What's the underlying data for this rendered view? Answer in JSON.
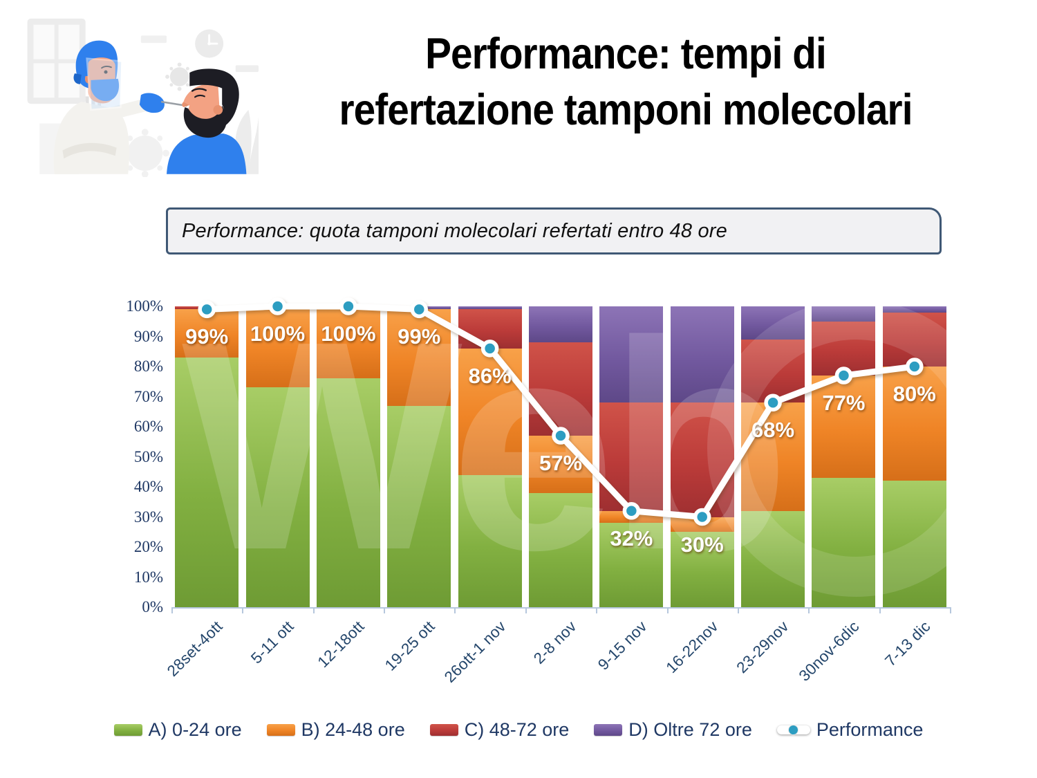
{
  "title": {
    "line1": "Performance: tempi di",
    "line2": "refertazione tamponi molecolari"
  },
  "subtitle": "Performance: quota tamponi molecolari refertati entro 48 ore",
  "watermark": "Web",
  "colors": {
    "axis_text": "#1f3864",
    "axis_line": "#b6c7dd",
    "marker_fill": "#2d9dc1",
    "line_stroke": "#ffffff",
    "title_text": "#000000"
  },
  "chart_data": {
    "type": "bar",
    "stacked": true,
    "grid": false,
    "legend_position": "bottom",
    "ylim": [
      0,
      100
    ],
    "ylabel_ticks": [
      "0%",
      "10%",
      "20%",
      "30%",
      "40%",
      "50%",
      "60%",
      "70%",
      "80%",
      "90%",
      "100%"
    ],
    "categories": [
      "28set-4ott",
      "5-11 ott",
      "12-18ott",
      "19-25 ott",
      "26ott-1 nov",
      "2-8 nov",
      "9-15 nov",
      "16-22nov",
      "23-29nov",
      "30nov-6dic",
      "7-13 dic"
    ],
    "series": [
      {
        "name": "A) 0-24 ore",
        "color": "#82b041",
        "color_light": "#a8cd66",
        "color_dark": "#6e9b34",
        "values": [
          83,
          73,
          76,
          67,
          44,
          38,
          28,
          25,
          32,
          43,
          42
        ]
      },
      {
        "name": "B) 24-48 ore",
        "color": "#ef8426",
        "color_light": "#f8a149",
        "color_dark": "#d66f19",
        "values": [
          16,
          27,
          24,
          32,
          42,
          19,
          4,
          5,
          36,
          34,
          38
        ]
      },
      {
        "name": "C) 48-72 ore",
        "color": "#bb3b39",
        "color_light": "#d05349",
        "color_dark": "#9e2f31",
        "values": [
          1,
          0,
          0,
          0,
          13,
          31,
          36,
          38,
          21,
          18,
          18
        ]
      },
      {
        "name": "D) Oltre 72 ore",
        "color": "#72599f",
        "color_light": "#8d74b6",
        "color_dark": "#5e4888",
        "values": [
          0,
          0,
          0,
          1,
          1,
          12,
          32,
          32,
          11,
          5,
          2
        ]
      }
    ],
    "line_series": {
      "name": "Performance",
      "marker_color": "#2d9dc1",
      "line_color": "#ffffff",
      "values": [
        99,
        100,
        100,
        99,
        86,
        57,
        32,
        30,
        68,
        77,
        80
      ],
      "labels": [
        "99%",
        "100%",
        "100%",
        "99%",
        "86%",
        "57%",
        "32%",
        "30%",
        "68%",
        "77%",
        "80%"
      ]
    }
  }
}
